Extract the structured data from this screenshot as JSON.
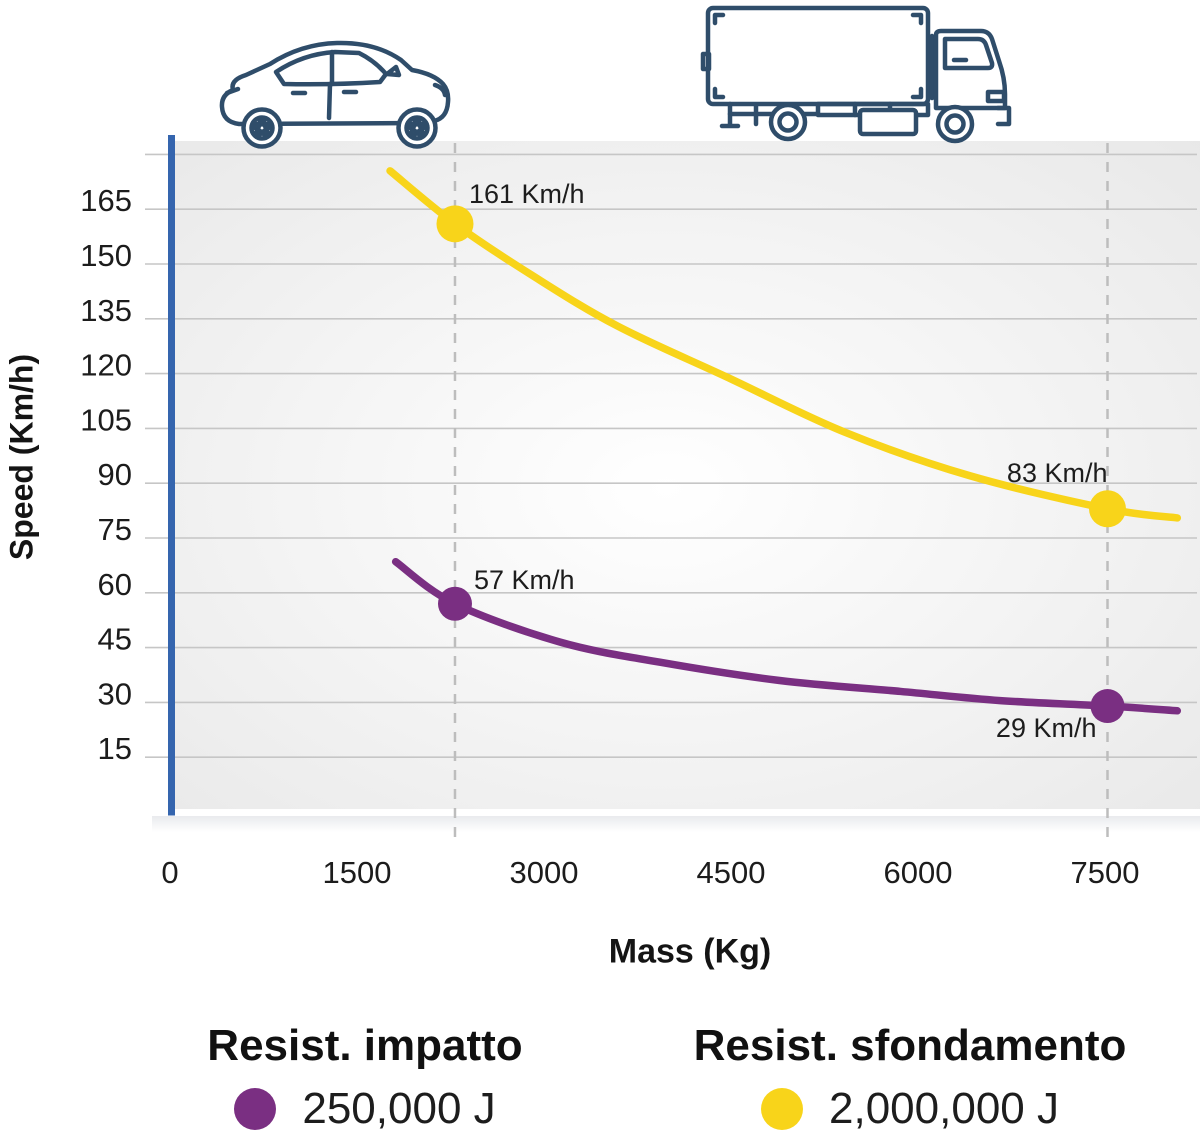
{
  "page": {
    "background": "#ffffff"
  },
  "colors": {
    "yellow": "#F8D41A",
    "purple": "#7A2F82",
    "axis_blue": "#3565AE",
    "axis_blue_light": "#B6C5DE",
    "grid": "#C6C6C6",
    "guide_dash": "#BDBDBD",
    "icon_navy": "#2F4D6A",
    "text": "#1C1C1C"
  },
  "chart_data": {
    "type": "line",
    "title": "",
    "xlabel": "Mass (Kg)",
    "ylabel": "Speed (Km/h)",
    "x_ticks": [
      0,
      1500,
      3000,
      4500,
      6000,
      7500
    ],
    "y_ticks": [
      165,
      150,
      135,
      120,
      105,
      90,
      75,
      60,
      45,
      30,
      15
    ],
    "xlim": [
      0,
      8260
    ],
    "ylim": [
      0,
      184
    ],
    "grid": true,
    "legend_position": "bottom",
    "guide_masses": [
      2286,
      7520
    ],
    "icons": [
      "car-icon",
      "truck-icon"
    ],
    "series": [
      {
        "name": "Resist. sfondamento",
        "energy": "2,000,000 J",
        "color": "#F8D41A",
        "curve_points": [
          [
            1765,
            175.5
          ],
          [
            2286,
            161
          ],
          [
            2900,
            147
          ],
          [
            3590,
            133
          ],
          [
            4470,
            119
          ],
          [
            5410,
            104
          ],
          [
            6420,
            92
          ],
          [
            7520,
            83
          ],
          [
            8080,
            80.5
          ]
        ],
        "markers": [
          {
            "mass": 2286,
            "speed": 161,
            "label": "161 Km/h",
            "anchor": "start",
            "dx": 14,
            "dy": -21
          },
          {
            "mass": 7520,
            "speed": 83,
            "label": "83 Km/h",
            "anchor": "end",
            "dx": 0,
            "dy": -27
          }
        ]
      },
      {
        "name": "Resist. impatto",
        "energy": "250,000 J",
        "color": "#7A2F82",
        "curve_points": [
          [
            1810,
            68.5
          ],
          [
            2286,
            57
          ],
          [
            3130,
            46.5
          ],
          [
            3930,
            41
          ],
          [
            4890,
            36
          ],
          [
            5860,
            33
          ],
          [
            6660,
            30.5
          ],
          [
            7520,
            29
          ],
          [
            8080,
            27.7
          ]
        ],
        "markers": [
          {
            "mass": 2286,
            "speed": 57,
            "label": "57 Km/h",
            "anchor": "start",
            "dx": 19,
            "dy": -15
          },
          {
            "mass": 7520,
            "speed": 29,
            "label": "29 Km/h",
            "anchor": "end",
            "dx": -11,
            "dy": 31
          }
        ]
      }
    ]
  },
  "legend": {
    "items": [
      {
        "title": "Resist. impatto",
        "value": "250,000 J",
        "color": "#7A2F82"
      },
      {
        "title": "Resist. sfondamento",
        "value": "2,000,000 J",
        "color": "#F8D41A"
      }
    ]
  }
}
